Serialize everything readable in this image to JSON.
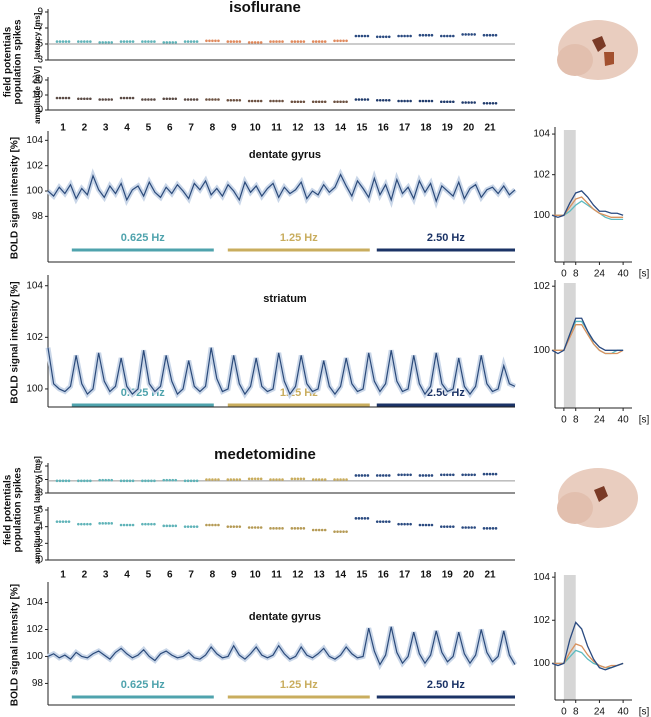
{
  "chart_data": [
    {
      "type": "scatter",
      "title": "isoflurane",
      "panel_label": [
        "field potentials",
        "population spikes"
      ],
      "ylabel": "latency [ms]",
      "ylim": [
        3,
        9
      ],
      "yticks": [
        3,
        5,
        7,
        9
      ],
      "baseline": 5,
      "series": [
        {
          "color": "#5fb3b8",
          "values": [
            5.3,
            5.3,
            5.2,
            5.3,
            5.3,
            5.2,
            5.3
          ]
        },
        {
          "color": "#e0895c",
          "values": [
            5.4,
            5.3,
            5.2,
            5.3,
            5.3,
            5.3,
            5.4
          ]
        },
        {
          "color": "#2a4a80",
          "values": [
            6.0,
            5.9,
            6.0,
            6.1,
            6.0,
            6.2,
            6.1
          ]
        }
      ]
    },
    {
      "type": "scatter",
      "ylabel": "amplitude [mV]",
      "ylim": [
        0,
        20
      ],
      "yticks": [
        0,
        10,
        20
      ],
      "categories": [
        "1",
        "2",
        "3",
        "4",
        "5",
        "6",
        "7",
        "8",
        "9",
        "10",
        "11",
        "12",
        "13",
        "14",
        "15",
        "16",
        "17",
        "18",
        "19",
        "20",
        "21"
      ],
      "series": [
        {
          "color": "#5a4a44",
          "values": [
            8,
            7.5,
            7,
            8,
            7,
            7.5,
            7
          ]
        },
        {
          "color": "#6b5040",
          "values": [
            7,
            6.5,
            6,
            6,
            5.5,
            5.5,
            5.5
          ]
        },
        {
          "color": "#1f3a6b",
          "values": [
            7,
            6.5,
            6,
            6,
            5.5,
            5,
            4.5
          ]
        }
      ]
    },
    {
      "type": "line",
      "title": "dentate gyrus",
      "ylabel": "BOLD signal intensity [%]",
      "ylim": [
        94.4,
        104.5
      ],
      "yticks": [
        98,
        100,
        102,
        104
      ],
      "color": "#2b4a7a",
      "stimuli": [
        {
          "label": "0.625 Hz",
          "color": "#4fa3ad"
        },
        {
          "label": "1.25 Hz",
          "color": "#c9ad5e"
        },
        {
          "label": "2.50 Hz",
          "color": "#1b3366"
        }
      ],
      "values": [
        100,
        99.6,
        100.3,
        99.8,
        100.5,
        99.4,
        100.2,
        99.7,
        101.2,
        100.1,
        99.5,
        100.4,
        99.8,
        100.6,
        99.3,
        100.1,
        100.4,
        99.6,
        100.7,
        99.9,
        99.5,
        100.3,
        99.8,
        100.5,
        100,
        99.4,
        100.6,
        100.1,
        100.8,
        99.7,
        100.2,
        99.6,
        100.5,
        100,
        99.3,
        100.7,
        99.9,
        100.4,
        99.6,
        100.2,
        100.6,
        99.5,
        100.3,
        99.8,
        100.1,
        100.7,
        99.4,
        100,
        99.7,
        100.5,
        99.9,
        100.3,
        101.3,
        100.4,
        99.6,
        100.8,
        100.2,
        99.5,
        101,
        99.7,
        100.5,
        99.3,
        100.9,
        99.8,
        100.3,
        99.4,
        100.8,
        99.9,
        100.6,
        99.2,
        100.4,
        100,
        99.6,
        100.7,
        99.4,
        100.2,
        100.5,
        99.5,
        100.1,
        100.3,
        99.8,
        100.4,
        99.7,
        100.1
      ]
    },
    {
      "type": "line",
      "xlabel": "[s]",
      "xlim": [
        -6,
        46
      ],
      "ylim": [
        97.7,
        104.2
      ],
      "xticks": [
        0,
        8,
        24,
        40
      ],
      "yticks": [
        100,
        102,
        104
      ],
      "shade": [
        0,
        8
      ],
      "x": [
        -8,
        -4,
        0,
        4,
        8,
        12,
        16,
        20,
        24,
        28,
        32,
        36,
        40
      ],
      "series": [
        {
          "color": "#5dbbc0",
          "values": [
            100,
            100,
            100,
            100.2,
            100.5,
            100.7,
            100.5,
            100.3,
            100.1,
            99.9,
            99.8,
            99.8,
            99.8
          ]
        },
        {
          "color": "#d9925e",
          "values": [
            100,
            100,
            100,
            100.4,
            100.8,
            100.9,
            100.6,
            100.3,
            100.1,
            100,
            99.9,
            99.9,
            99.9
          ]
        },
        {
          "color": "#2a4a80",
          "values": [
            100,
            99.9,
            100,
            100.6,
            101.1,
            101.2,
            100.9,
            100.5,
            100.2,
            100.2,
            100.1,
            100.1,
            100
          ]
        }
      ]
    },
    {
      "type": "line",
      "title": "striatum",
      "ylabel": "BOLD signal intensity [%]",
      "ylim": [
        99.3,
        104.3
      ],
      "yticks": [
        100,
        102,
        104
      ],
      "color": "#2b4a7a",
      "stimuli": [
        {
          "label": "0.625 Hz",
          "color": "#4fa3ad"
        },
        {
          "label": "1.25 Hz",
          "color": "#c9ad5e"
        },
        {
          "label": "2.50 Hz",
          "color": "#1b3366"
        }
      ],
      "values": [
        101.6,
        100.2,
        100,
        99.9,
        100.1,
        101.3,
        100.2,
        99.8,
        100,
        101.4,
        100.3,
        99.9,
        100.1,
        101.2,
        100.1,
        99.8,
        100,
        101.5,
        100.2,
        99.9,
        100.1,
        101.3,
        100.3,
        99.8,
        100,
        101.1,
        100.1,
        99.9,
        100.1,
        101.6,
        100.4,
        99.9,
        100,
        101.3,
        100.2,
        99.8,
        100.1,
        101.2,
        100.1,
        99.9,
        100,
        101.4,
        100.3,
        99.8,
        100.1,
        101.3,
        100.2,
        99.9,
        100,
        101.1,
        100.1,
        99.8,
        100.1,
        101.2,
        100.2,
        99.9,
        100,
        101.4,
        100.3,
        99.9,
        100.2,
        101.5,
        100.3,
        99.9,
        100,
        101.3,
        100.2,
        99.8,
        100.1,
        101.4,
        100.2,
        99.9,
        100,
        101.2,
        100.1,
        99.8,
        100.1,
        101.3,
        100.2,
        99.9,
        100,
        100.9,
        100.2,
        100.1
      ]
    },
    {
      "type": "line",
      "xlabel": "[s]",
      "xlim": [
        -6,
        46
      ],
      "ylim": [
        98.2,
        102.1
      ],
      "xticks": [
        0,
        8,
        24,
        40
      ],
      "yticks": [
        100,
        102
      ],
      "shade": [
        0,
        8
      ],
      "x": [
        -8,
        -4,
        0,
        4,
        8,
        12,
        16,
        20,
        24,
        28,
        32,
        36,
        40
      ],
      "series": [
        {
          "color": "#5dbbc0",
          "values": [
            100,
            100,
            100,
            100.5,
            100.9,
            100.9,
            100.6,
            100.2,
            100,
            99.9,
            99.9,
            100,
            100
          ]
        },
        {
          "color": "#d9925e",
          "values": [
            100,
            100,
            100,
            100.4,
            100.8,
            100.8,
            100.5,
            100.2,
            100,
            99.9,
            99.9,
            99.9,
            100
          ]
        },
        {
          "color": "#2a4a80",
          "values": [
            100,
            99.9,
            100,
            100.5,
            101,
            101,
            100.6,
            100.3,
            100.1,
            100,
            100,
            100,
            100
          ]
        }
      ]
    },
    {
      "type": "scatter",
      "title": "medetomidine",
      "panel_label": [
        "field potentials",
        "population spikes"
      ],
      "ylabel": "latency [ms]",
      "ylim": [
        3,
        7
      ],
      "yticks": [
        3,
        5,
        7
      ],
      "baseline": 4.8,
      "series": [
        {
          "color": "#5fb3b8",
          "values": [
            4.8,
            4.8,
            4.9,
            4.8,
            4.8,
            4.9,
            4.8
          ]
        },
        {
          "color": "#c9ad5e",
          "values": [
            5.0,
            5.0,
            5.1,
            5.0,
            5.1,
            5.0,
            5.0
          ]
        },
        {
          "color": "#2a4a80",
          "values": [
            5.6,
            5.6,
            5.7,
            5.6,
            5.7,
            5.7,
            5.8
          ]
        }
      ]
    },
    {
      "type": "scatter",
      "ylabel": "amplitude [mV]",
      "ylim": [
        0,
        6
      ],
      "yticks": [
        0,
        2,
        4,
        6
      ],
      "categories": [
        "1",
        "2",
        "3",
        "4",
        "5",
        "6",
        "7",
        "8",
        "9",
        "10",
        "11",
        "12",
        "13",
        "14",
        "15",
        "16",
        "17",
        "18",
        "19",
        "20",
        "21"
      ],
      "series": [
        {
          "color": "#5fb3b8",
          "values": [
            4.6,
            4.3,
            4.4,
            4.2,
            4.3,
            4.1,
            4.0
          ]
        },
        {
          "color": "#b59a55",
          "values": [
            4.2,
            4.0,
            3.9,
            3.8,
            3.8,
            3.6,
            3.4
          ]
        },
        {
          "color": "#2a4a80",
          "values": [
            5.0,
            4.6,
            4.3,
            4.2,
            4.0,
            3.9,
            3.8
          ]
        }
      ]
    },
    {
      "type": "line",
      "title": "dentate gyrus",
      "ylabel": "BOLD signal intensity [%]",
      "ylim": [
        96.4,
        105.3
      ],
      "yticks": [
        98,
        100,
        102,
        104
      ],
      "color": "#2b4a7a",
      "stimuli": [
        {
          "label": "0.625 Hz",
          "color": "#4fa3ad"
        },
        {
          "label": "1.25 Hz",
          "color": "#c9ad5e"
        },
        {
          "label": "2.50 Hz",
          "color": "#1b3366"
        }
      ],
      "values": [
        100,
        100.2,
        99.9,
        100.1,
        99.8,
        100.3,
        100,
        99.9,
        100.2,
        100.4,
        100.1,
        99.8,
        100.3,
        100.6,
        100.2,
        99.9,
        100.1,
        100.5,
        100,
        99.7,
        100.2,
        100.4,
        100.1,
        99.9,
        100,
        100.3,
        99.9,
        99.8,
        100.1,
        100.7,
        100.2,
        99.9,
        100,
        100.8,
        100.1,
        99.8,
        100.2,
        100.7,
        100.1,
        99.9,
        100.1,
        100.8,
        100.2,
        99.8,
        100,
        100.7,
        100.1,
        99.9,
        100.2,
        100.6,
        100,
        99.8,
        100.1,
        100.7,
        100.2,
        99.9,
        100,
        102.1,
        100.4,
        99.4,
        100.1,
        102.2,
        100.3,
        99.5,
        100,
        101.8,
        100.2,
        99.5,
        100.1,
        101.9,
        100.3,
        99.6,
        100,
        101.8,
        100.2,
        99.5,
        100.1,
        102,
        100.3,
        99.6,
        100,
        101.9,
        100.1,
        99.4
      ]
    },
    {
      "type": "line",
      "xlabel": "[s]",
      "xlim": [
        -6,
        46
      ],
      "ylim": [
        98.3,
        104.1
      ],
      "xticks": [
        0,
        8,
        24,
        40
      ],
      "yticks": [
        100,
        102,
        104
      ],
      "shade": [
        0,
        8
      ],
      "x": [
        -8,
        -4,
        0,
        4,
        8,
        12,
        16,
        20,
        24,
        28,
        32,
        36,
        40
      ],
      "series": [
        {
          "color": "#5dbbc0",
          "values": [
            100,
            100,
            100,
            100.3,
            100.6,
            100.5,
            100.2,
            100,
            99.9,
            99.8,
            99.8,
            99.9,
            100
          ]
        },
        {
          "color": "#d9925e",
          "values": [
            100,
            100,
            100,
            100.5,
            100.9,
            100.8,
            100.4,
            100.1,
            99.9,
            99.8,
            99.9,
            99.9,
            100
          ]
        },
        {
          "color": "#2a4a80",
          "values": [
            100,
            99.9,
            100,
            101.1,
            101.9,
            101.6,
            100.8,
            100.2,
            99.8,
            99.7,
            99.8,
            99.9,
            100
          ]
        }
      ]
    }
  ]
}
